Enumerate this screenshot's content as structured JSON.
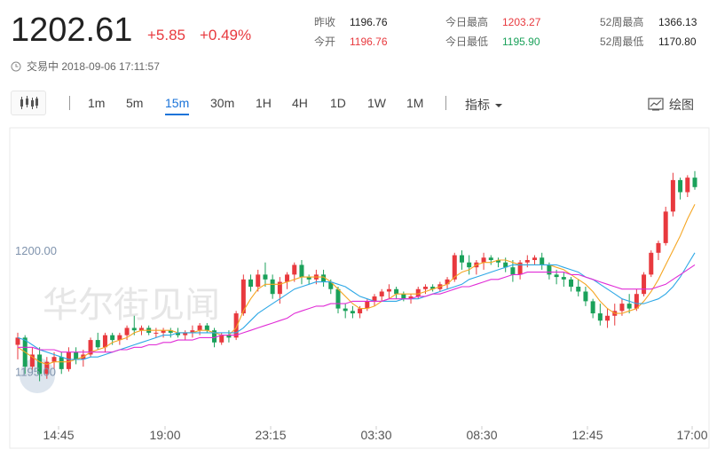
{
  "quote": {
    "price": "1202.61",
    "change": "+5.85",
    "change_pct": "+0.49%",
    "status": "交易中 2018-09-06 17:11:57"
  },
  "stats": {
    "prev_close_label": "昨收",
    "prev_close": "1196.76",
    "open_label": "今开",
    "open": "1196.76",
    "day_high_label": "今日最高",
    "day_high": "1203.27",
    "day_low_label": "今日最低",
    "day_low": "1195.90",
    "wk52_high_label": "52周最高",
    "wk52_high": "1366.13",
    "wk52_low_label": "52周最低",
    "wk52_low": "1170.80"
  },
  "toolbar": {
    "timeframes": [
      "1m",
      "5m",
      "15m",
      "30m",
      "1H",
      "4H",
      "1D",
      "1W",
      "1M"
    ],
    "active_timeframe": "15m",
    "indicator_label": "指标",
    "draw_label": "绘图"
  },
  "watermark": "华尔街见闻",
  "colors": {
    "up": "#e8393e",
    "down": "#1aa15a",
    "ma_orange": "#f5a623",
    "ma_blue": "#2ea8e6",
    "ma_magenta": "#e02cd6",
    "accent": "#1a73d9"
  },
  "chart_data": {
    "type": "candlestick",
    "x_ticks": [
      "14:45",
      "19:00",
      "23:15",
      "03:30",
      "08:30",
      "12:45",
      "17:00"
    ],
    "y_ticks": [
      "1200.00",
      "1195.00"
    ],
    "ylim": [
      1193.3,
      1204.8
    ],
    "candles": [
      [
        1196.1,
        1196.6,
        1195.5,
        1196.4
      ],
      [
        1196.4,
        1196.5,
        1194.9,
        1195.2
      ],
      [
        1195.2,
        1196.0,
        1195.0,
        1195.7
      ],
      [
        1195.7,
        1196.0,
        1194.6,
        1194.9
      ],
      [
        1194.9,
        1195.6,
        1194.7,
        1195.4
      ],
      [
        1195.4,
        1195.8,
        1195.1,
        1195.6
      ],
      [
        1195.6,
        1195.8,
        1194.9,
        1195.1
      ],
      [
        1195.1,
        1196.0,
        1195.0,
        1195.8
      ],
      [
        1195.8,
        1196.0,
        1195.3,
        1195.5
      ],
      [
        1195.5,
        1195.9,
        1195.2,
        1195.7
      ],
      [
        1195.7,
        1196.4,
        1195.6,
        1196.3
      ],
      [
        1196.3,
        1196.6,
        1195.9,
        1196.0
      ],
      [
        1196.0,
        1196.6,
        1195.8,
        1196.5
      ],
      [
        1196.5,
        1196.6,
        1196.1,
        1196.3
      ],
      [
        1196.3,
        1196.6,
        1196.1,
        1196.5
      ],
      [
        1196.5,
        1196.9,
        1196.3,
        1196.8
      ],
      [
        1196.8,
        1197.3,
        1196.5,
        1196.7
      ],
      [
        1196.7,
        1196.9,
        1196.5,
        1196.8
      ],
      [
        1196.8,
        1196.9,
        1196.5,
        1196.6
      ],
      [
        1196.6,
        1196.8,
        1196.4,
        1196.6
      ],
      [
        1196.6,
        1196.8,
        1196.4,
        1196.7
      ],
      [
        1196.7,
        1196.8,
        1196.4,
        1196.6
      ],
      [
        1196.6,
        1196.8,
        1196.4,
        1196.5
      ],
      [
        1196.5,
        1196.7,
        1196.3,
        1196.6
      ],
      [
        1196.6,
        1196.9,
        1196.4,
        1196.7
      ],
      [
        1196.7,
        1197.0,
        1196.5,
        1196.9
      ],
      [
        1196.9,
        1197.0,
        1196.6,
        1196.7
      ],
      [
        1196.7,
        1196.8,
        1196.0,
        1196.2
      ],
      [
        1196.2,
        1196.6,
        1196.1,
        1196.5
      ],
      [
        1196.5,
        1196.7,
        1196.2,
        1196.4
      ],
      [
        1196.4,
        1197.5,
        1196.3,
        1197.4
      ],
      [
        1197.4,
        1199.0,
        1197.3,
        1198.8
      ],
      [
        1198.8,
        1199.0,
        1198.3,
        1198.5
      ],
      [
        1198.5,
        1199.2,
        1198.3,
        1199.0
      ],
      [
        1199.0,
        1199.5,
        1198.5,
        1198.8
      ],
      [
        1198.8,
        1199.0,
        1198.0,
        1198.2
      ],
      [
        1198.2,
        1198.9,
        1197.8,
        1198.7
      ],
      [
        1198.7,
        1199.1,
        1198.4,
        1199.0
      ],
      [
        1199.0,
        1199.5,
        1198.7,
        1199.4
      ],
      [
        1199.4,
        1199.6,
        1198.6,
        1198.9
      ],
      [
        1198.9,
        1199.0,
        1198.6,
        1198.8
      ],
      [
        1198.8,
        1199.2,
        1198.6,
        1199.0
      ],
      [
        1199.0,
        1199.2,
        1198.5,
        1198.7
      ],
      [
        1198.7,
        1198.8,
        1198.2,
        1198.4
      ],
      [
        1198.4,
        1198.5,
        1197.4,
        1197.6
      ],
      [
        1197.6,
        1197.8,
        1197.2,
        1197.5
      ],
      [
        1197.5,
        1197.7,
        1197.2,
        1197.4
      ],
      [
        1197.4,
        1197.7,
        1197.2,
        1197.6
      ],
      [
        1197.6,
        1198.0,
        1197.5,
        1197.9
      ],
      [
        1197.9,
        1198.2,
        1197.7,
        1198.1
      ],
      [
        1198.1,
        1198.4,
        1197.9,
        1198.3
      ],
      [
        1198.3,
        1198.6,
        1198.0,
        1198.4
      ],
      [
        1198.4,
        1198.5,
        1198.0,
        1198.2
      ],
      [
        1198.2,
        1198.3,
        1197.9,
        1198.0
      ],
      [
        1198.0,
        1198.2,
        1197.8,
        1198.1
      ],
      [
        1198.1,
        1198.5,
        1198.0,
        1198.4
      ],
      [
        1198.4,
        1198.6,
        1198.2,
        1198.5
      ],
      [
        1198.5,
        1198.6,
        1198.3,
        1198.4
      ],
      [
        1198.4,
        1198.7,
        1198.3,
        1198.6
      ],
      [
        1198.6,
        1198.9,
        1198.4,
        1198.8
      ],
      [
        1198.8,
        1199.9,
        1198.7,
        1199.8
      ],
      [
        1199.8,
        1200.0,
        1199.2,
        1199.5
      ],
      [
        1199.5,
        1199.8,
        1199.0,
        1199.3
      ],
      [
        1199.3,
        1199.6,
        1199.0,
        1199.5
      ],
      [
        1199.5,
        1199.9,
        1199.2,
        1199.7
      ],
      [
        1199.7,
        1199.8,
        1199.4,
        1199.6
      ],
      [
        1199.6,
        1199.7,
        1199.3,
        1199.5
      ],
      [
        1199.5,
        1199.7,
        1199.1,
        1199.3
      ],
      [
        1199.3,
        1199.6,
        1198.7,
        1199.0
      ],
      [
        1199.0,
        1199.6,
        1198.8,
        1199.5
      ],
      [
        1199.5,
        1199.8,
        1199.3,
        1199.6
      ],
      [
        1199.6,
        1199.8,
        1199.4,
        1199.7
      ],
      [
        1199.7,
        1199.9,
        1199.2,
        1199.4
      ],
      [
        1199.4,
        1199.5,
        1198.8,
        1199.0
      ],
      [
        1199.0,
        1199.2,
        1198.6,
        1198.9
      ],
      [
        1198.9,
        1199.1,
        1198.5,
        1198.8
      ],
      [
        1198.8,
        1198.9,
        1198.3,
        1198.5
      ],
      [
        1198.5,
        1198.8,
        1198.1,
        1198.3
      ],
      [
        1198.3,
        1198.5,
        1197.7,
        1197.9
      ],
      [
        1197.9,
        1198.0,
        1197.2,
        1197.4
      ],
      [
        1197.4,
        1197.8,
        1196.9,
        1197.1
      ],
      [
        1197.1,
        1197.6,
        1196.8,
        1197.3
      ],
      [
        1197.3,
        1197.8,
        1196.9,
        1197.5
      ],
      [
        1197.5,
        1198.0,
        1197.3,
        1197.8
      ],
      [
        1197.8,
        1198.2,
        1197.4,
        1197.6
      ],
      [
        1197.6,
        1198.4,
        1197.5,
        1198.2
      ],
      [
        1198.2,
        1199.1,
        1198.1,
        1199.0
      ],
      [
        1199.0,
        1200.0,
        1198.9,
        1199.9
      ],
      [
        1199.9,
        1200.4,
        1199.6,
        1200.3
      ],
      [
        1200.3,
        1201.8,
        1200.2,
        1201.6
      ],
      [
        1201.6,
        1203.2,
        1201.4,
        1202.9
      ],
      [
        1202.9,
        1203.0,
        1202.1,
        1202.4
      ],
      [
        1202.4,
        1203.1,
        1202.2,
        1203.0
      ],
      [
        1203.0,
        1203.27,
        1202.5,
        1202.61
      ]
    ],
    "ma_short": [
      1196.0,
      1195.8,
      1195.6,
      1195.4,
      1195.3,
      1195.4,
      1195.4,
      1195.4,
      1195.5,
      1195.6,
      1195.8,
      1195.9,
      1196.0,
      1196.2,
      1196.3,
      1196.4,
      1196.6,
      1196.7,
      1196.7,
      1196.7,
      1196.7,
      1196.7,
      1196.6,
      1196.6,
      1196.6,
      1196.7,
      1196.7,
      1196.6,
      1196.5,
      1196.5,
      1196.8,
      1197.5,
      1198.0,
      1198.4,
      1198.6,
      1198.6,
      1198.6,
      1198.7,
      1198.8,
      1198.9,
      1198.9,
      1198.9,
      1198.9,
      1198.7,
      1198.4,
      1198.1,
      1197.8,
      1197.6,
      1197.6,
      1197.7,
      1197.9,
      1198.0,
      1198.2,
      1198.2,
      1198.2,
      1198.2,
      1198.3,
      1198.4,
      1198.5,
      1198.6,
      1198.9,
      1199.1,
      1199.2,
      1199.4,
      1199.5,
      1199.5,
      1199.6,
      1199.6,
      1199.5,
      1199.4,
      1199.4,
      1199.4,
      1199.4,
      1199.4,
      1199.3,
      1199.2,
      1199.0,
      1198.8,
      1198.6,
      1198.3,
      1197.9,
      1197.6,
      1197.4,
      1197.4,
      1197.5,
      1197.6,
      1197.9,
      1198.3,
      1198.8,
      1199.4,
      1200.0,
      1200.6,
      1201.3,
      1201.9
    ],
    "ma_mid": [
      1196.4,
      1196.3,
      1196.1,
      1195.9,
      1195.8,
      1195.7,
      1195.6,
      1195.5,
      1195.5,
      1195.5,
      1195.6,
      1195.6,
      1195.7,
      1195.8,
      1195.9,
      1196.0,
      1196.1,
      1196.2,
      1196.3,
      1196.4,
      1196.5,
      1196.5,
      1196.6,
      1196.6,
      1196.6,
      1196.6,
      1196.6,
      1196.6,
      1196.6,
      1196.6,
      1196.6,
      1196.8,
      1197.1,
      1197.4,
      1197.6,
      1197.8,
      1198.0,
      1198.2,
      1198.4,
      1198.5,
      1198.6,
      1198.7,
      1198.7,
      1198.7,
      1198.6,
      1198.5,
      1198.3,
      1198.1,
      1198.0,
      1197.9,
      1197.9,
      1197.9,
      1197.9,
      1198.0,
      1198.0,
      1198.0,
      1198.1,
      1198.2,
      1198.3,
      1198.4,
      1198.5,
      1198.6,
      1198.8,
      1198.9,
      1199.0,
      1199.1,
      1199.2,
      1199.3,
      1199.4,
      1199.4,
      1199.4,
      1199.4,
      1199.4,
      1199.4,
      1199.4,
      1199.3,
      1199.2,
      1199.1,
      1198.9,
      1198.8,
      1198.6,
      1198.4,
      1198.2,
      1198.0,
      1197.9,
      1197.8,
      1197.8,
      1197.9,
      1198.0,
      1198.2,
      1198.5,
      1198.9,
      1199.4,
      1199.9
    ],
    "ma_long": [
      1196.0,
      1196.0,
      1196.0,
      1195.9,
      1195.9,
      1195.9,
      1195.8,
      1195.8,
      1195.8,
      1195.8,
      1195.8,
      1195.8,
      1195.8,
      1195.8,
      1195.9,
      1195.9,
      1196.0,
      1196.0,
      1196.1,
      1196.1,
      1196.2,
      1196.2,
      1196.3,
      1196.3,
      1196.3,
      1196.4,
      1196.4,
      1196.4,
      1196.5,
      1196.5,
      1196.5,
      1196.6,
      1196.7,
      1196.8,
      1196.9,
      1197.0,
      1197.1,
      1197.2,
      1197.4,
      1197.5,
      1197.6,
      1197.7,
      1197.7,
      1197.8,
      1197.8,
      1197.8,
      1197.9,
      1197.9,
      1197.9,
      1197.9,
      1197.9,
      1198.0,
      1198.0,
      1198.0,
      1198.0,
      1198.1,
      1198.1,
      1198.2,
      1198.2,
      1198.3,
      1198.4,
      1198.5,
      1198.5,
      1198.6,
      1198.7,
      1198.8,
      1198.8,
      1198.9,
      1199.0,
      1199.0,
      1199.1,
      1199.1,
      1199.1,
      1199.1,
      1199.1,
      1199.1,
      1199.0,
      1199.0,
      1198.9,
      1198.8,
      1198.7,
      1198.6,
      1198.5,
      1198.4,
      1198.4,
      1198.4,
      1198.4,
      1198.4,
      1198.5,
      1198.6,
      1198.8,
      1199.0,
      1199.2,
      1199.4
    ]
  }
}
